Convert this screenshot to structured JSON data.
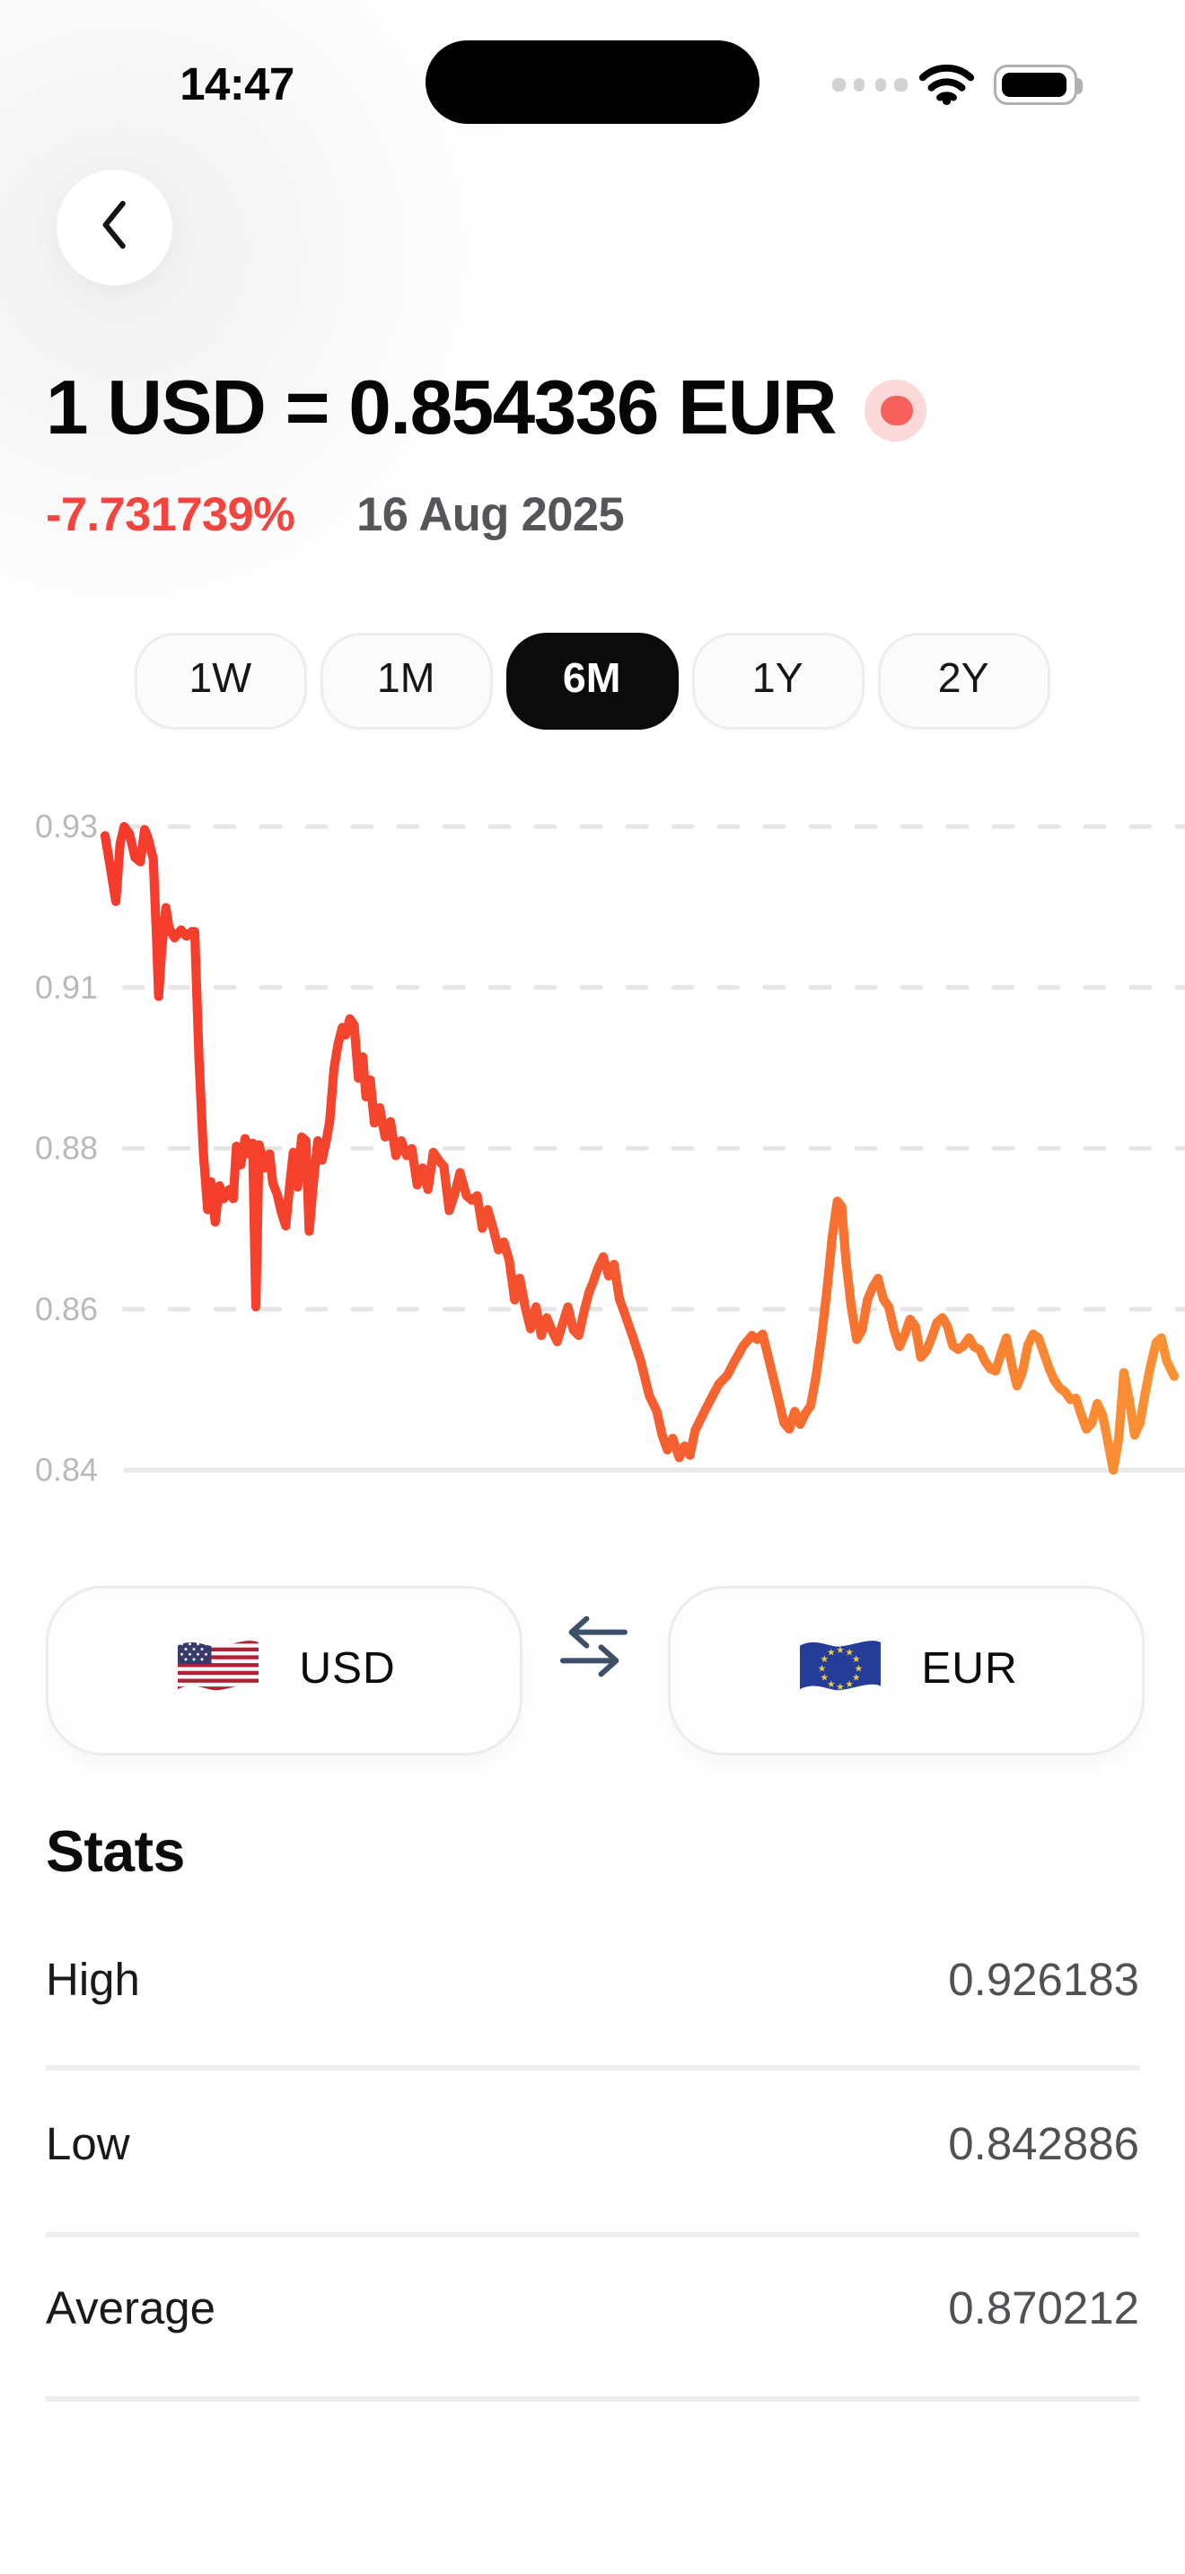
{
  "status_bar": {
    "time": "14:47"
  },
  "header": {
    "title": "1 USD = 0.854336 EUR",
    "change_percent": "-7.731739%",
    "date": "16 Aug 2025"
  },
  "range_tabs": {
    "options": [
      "1W",
      "1M",
      "6M",
      "1Y",
      "2Y"
    ],
    "selected": "6M"
  },
  "chart_data": {
    "type": "line",
    "title": "USD to EUR exchange rate, 6 month range",
    "y_ticks": [
      "0.93",
      "0.91",
      "0.88",
      "0.86",
      "0.84"
    ],
    "ylim": [
      0.842886,
      0.926183
    ],
    "grid": "horizontal dashed gridlines, solid bottom axis",
    "legend": "none",
    "line_gradient": [
      "#f63a2c",
      "#f4452d",
      "#f55630",
      "#f76c30",
      "#f98431",
      "#fa9134"
    ],
    "points": [
      [
        0,
        0.925
      ],
      [
        0.005,
        0.9208
      ],
      [
        0.01,
        0.9165
      ],
      [
        0.014,
        0.924
      ],
      [
        0.018,
        0.9262
      ],
      [
        0.023,
        0.9252
      ],
      [
        0.028,
        0.9222
      ],
      [
        0.033,
        0.9216
      ],
      [
        0.037,
        0.9258
      ],
      [
        0.04,
        0.9248
      ],
      [
        0.045,
        0.922
      ],
      [
        0.048,
        0.912
      ],
      [
        0.05,
        0.9042
      ],
      [
        0.053,
        0.91
      ],
      [
        0.057,
        0.9157
      ],
      [
        0.06,
        0.913
      ],
      [
        0.065,
        0.9118
      ],
      [
        0.071,
        0.9128
      ],
      [
        0.076,
        0.912
      ],
      [
        0.081,
        0.9126
      ],
      [
        0.084,
        0.9126
      ],
      [
        0.088,
        0.896
      ],
      [
        0.092,
        0.884
      ],
      [
        0.096,
        0.8766
      ],
      [
        0.099,
        0.8802
      ],
      [
        0.103,
        0.875
      ],
      [
        0.107,
        0.8797
      ],
      [
        0.111,
        0.878
      ],
      [
        0.116,
        0.8792
      ],
      [
        0.12,
        0.878
      ],
      [
        0.123,
        0.8848
      ],
      [
        0.127,
        0.8824
      ],
      [
        0.131,
        0.8858
      ],
      [
        0.135,
        0.8838
      ],
      [
        0.138,
        0.8852
      ],
      [
        0.141,
        0.864
      ],
      [
        0.144,
        0.885
      ],
      [
        0.149,
        0.882
      ],
      [
        0.154,
        0.8838
      ],
      [
        0.157,
        0.88
      ],
      [
        0.161,
        0.8786
      ],
      [
        0.165,
        0.8762
      ],
      [
        0.169,
        0.8745
      ],
      [
        0.173,
        0.8802
      ],
      [
        0.176,
        0.884
      ],
      [
        0.18,
        0.8795
      ],
      [
        0.184,
        0.886
      ],
      [
        0.188,
        0.8855
      ],
      [
        0.191,
        0.8738
      ],
      [
        0.195,
        0.8802
      ],
      [
        0.199,
        0.8855
      ],
      [
        0.203,
        0.883
      ],
      [
        0.207,
        0.8856
      ],
      [
        0.21,
        0.888
      ],
      [
        0.214,
        0.8948
      ],
      [
        0.218,
        0.898
      ],
      [
        0.222,
        0.9002
      ],
      [
        0.225,
        0.8992
      ],
      [
        0.229,
        0.9013
      ],
      [
        0.233,
        0.9005
      ],
      [
        0.237,
        0.8936
      ],
      [
        0.241,
        0.8964
      ],
      [
        0.244,
        0.8912
      ],
      [
        0.248,
        0.8934
      ],
      [
        0.252,
        0.8878
      ],
      [
        0.257,
        0.8898
      ],
      [
        0.262,
        0.886
      ],
      [
        0.267,
        0.888
      ],
      [
        0.272,
        0.8836
      ],
      [
        0.277,
        0.8855
      ],
      [
        0.282,
        0.8836
      ],
      [
        0.287,
        0.8845
      ],
      [
        0.292,
        0.8798
      ],
      [
        0.297,
        0.882
      ],
      [
        0.302,
        0.8792
      ],
      [
        0.307,
        0.884
      ],
      [
        0.312,
        0.883
      ],
      [
        0.317,
        0.8822
      ],
      [
        0.322,
        0.8765
      ],
      [
        0.327,
        0.8786
      ],
      [
        0.332,
        0.8814
      ],
      [
        0.338,
        0.8784
      ],
      [
        0.343,
        0.8778
      ],
      [
        0.348,
        0.8784
      ],
      [
        0.353,
        0.8742
      ],
      [
        0.358,
        0.8766
      ],
      [
        0.363,
        0.8742
      ],
      [
        0.368,
        0.8714
      ],
      [
        0.373,
        0.8724
      ],
      [
        0.378,
        0.87
      ],
      [
        0.383,
        0.8649
      ],
      [
        0.388,
        0.8677
      ],
      [
        0.393,
        0.864
      ],
      [
        0.398,
        0.8612
      ],
      [
        0.403,
        0.864
      ],
      [
        0.408,
        0.8603
      ],
      [
        0.413,
        0.8626
      ],
      [
        0.418,
        0.861
      ],
      [
        0.423,
        0.8595
      ],
      [
        0.428,
        0.8618
      ],
      [
        0.433,
        0.864
      ],
      [
        0.438,
        0.861
      ],
      [
        0.443,
        0.8603
      ],
      [
        0.448,
        0.8635
      ],
      [
        0.453,
        0.866
      ],
      [
        0.456,
        0.867
      ],
      [
        0.461,
        0.869
      ],
      [
        0.466,
        0.8705
      ],
      [
        0.471,
        0.868
      ],
      [
        0.476,
        0.8695
      ],
      [
        0.481,
        0.865
      ],
      [
        0.486,
        0.8632
      ],
      [
        0.494,
        0.86
      ],
      [
        0.501,
        0.857
      ],
      [
        0.509,
        0.8525
      ],
      [
        0.516,
        0.8505
      ],
      [
        0.521,
        0.8475
      ],
      [
        0.526,
        0.8455
      ],
      [
        0.531,
        0.847
      ],
      [
        0.537,
        0.8445
      ],
      [
        0.542,
        0.846
      ],
      [
        0.547,
        0.8448
      ],
      [
        0.552,
        0.848
      ],
      [
        0.559,
        0.85
      ],
      [
        0.567,
        0.8522
      ],
      [
        0.574,
        0.854
      ],
      [
        0.582,
        0.8552
      ],
      [
        0.589,
        0.857
      ],
      [
        0.597,
        0.859
      ],
      [
        0.605,
        0.8603
      ],
      [
        0.61,
        0.8598
      ],
      [
        0.615,
        0.8605
      ],
      [
        0.622,
        0.8566
      ],
      [
        0.63,
        0.852
      ],
      [
        0.635,
        0.849
      ],
      [
        0.64,
        0.8482
      ],
      [
        0.645,
        0.8505
      ],
      [
        0.65,
        0.8488
      ],
      [
        0.655,
        0.8502
      ],
      [
        0.66,
        0.8512
      ],
      [
        0.665,
        0.855
      ],
      [
        0.67,
        0.86
      ],
      [
        0.675,
        0.866
      ],
      [
        0.68,
        0.873
      ],
      [
        0.685,
        0.8777
      ],
      [
        0.689,
        0.877
      ],
      [
        0.693,
        0.87
      ],
      [
        0.698,
        0.864
      ],
      [
        0.703,
        0.8598
      ],
      [
        0.708,
        0.861
      ],
      [
        0.713,
        0.8649
      ],
      [
        0.718,
        0.8665
      ],
      [
        0.723,
        0.8677
      ],
      [
        0.728,
        0.865
      ],
      [
        0.733,
        0.864
      ],
      [
        0.738,
        0.861
      ],
      [
        0.743,
        0.8589
      ],
      [
        0.748,
        0.8605
      ],
      [
        0.753,
        0.8624
      ],
      [
        0.758,
        0.8615
      ],
      [
        0.763,
        0.8575
      ],
      [
        0.768,
        0.8583
      ],
      [
        0.773,
        0.86
      ],
      [
        0.778,
        0.862
      ],
      [
        0.783,
        0.8626
      ],
      [
        0.788,
        0.8615
      ],
      [
        0.793,
        0.859
      ],
      [
        0.798,
        0.8585
      ],
      [
        0.803,
        0.859
      ],
      [
        0.808,
        0.86
      ],
      [
        0.813,
        0.8588
      ],
      [
        0.818,
        0.8585
      ],
      [
        0.823,
        0.857
      ],
      [
        0.828,
        0.856
      ],
      [
        0.833,
        0.8557
      ],
      [
        0.838,
        0.858
      ],
      [
        0.843,
        0.86
      ],
      [
        0.848,
        0.8565
      ],
      [
        0.853,
        0.8538
      ],
      [
        0.858,
        0.8555
      ],
      [
        0.863,
        0.859
      ],
      [
        0.868,
        0.8605
      ],
      [
        0.873,
        0.86
      ],
      [
        0.878,
        0.858
      ],
      [
        0.883,
        0.856
      ],
      [
        0.888,
        0.8545
      ],
      [
        0.893,
        0.8535
      ],
      [
        0.898,
        0.853
      ],
      [
        0.903,
        0.852
      ],
      [
        0.908,
        0.8522
      ],
      [
        0.913,
        0.85
      ],
      [
        0.918,
        0.8482
      ],
      [
        0.923,
        0.849
      ],
      [
        0.928,
        0.8515
      ],
      [
        0.933,
        0.85
      ],
      [
        0.938,
        0.8465
      ],
      [
        0.943,
        0.8429
      ],
      [
        0.948,
        0.847
      ],
      [
        0.953,
        0.8555
      ],
      [
        0.958,
        0.852
      ],
      [
        0.963,
        0.8474
      ],
      [
        0.968,
        0.849
      ],
      [
        0.973,
        0.853
      ],
      [
        0.978,
        0.8565
      ],
      [
        0.983,
        0.8594
      ],
      [
        0.988,
        0.86
      ],
      [
        0.993,
        0.857
      ],
      [
        1,
        0.855
      ]
    ]
  },
  "converter": {
    "from": {
      "code": "USD",
      "flag": "us-flag"
    },
    "to": {
      "code": "EUR",
      "flag": "eu-flag"
    },
    "swap_icon": "swap-arrows"
  },
  "stats": {
    "title": "Stats",
    "rows": [
      {
        "label": "High",
        "value": "0.926183"
      },
      {
        "label": "Low",
        "value": "0.842886"
      },
      {
        "label": "Average",
        "value": "0.870212"
      }
    ]
  },
  "colors": {
    "negative_red": "#f5443e",
    "live_dot_inner": "#f7615b",
    "live_dot_outer": "#fcd9d9",
    "selected_tab_bg": "#0b0b0b",
    "swap_icon": "#3e5067",
    "tick_label": "#b7babd"
  }
}
